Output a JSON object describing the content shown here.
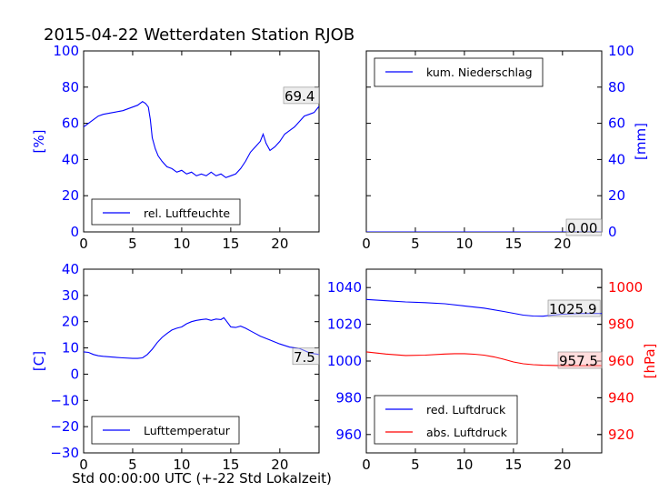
{
  "figure": {
    "title": "2015-04-22 Wetterdaten Station RJOB",
    "xlabel": "Std 00:00:00 UTC (+-22 Std Lokalzeit)"
  },
  "colors": {
    "blue": "#0000ff",
    "red": "#ff0000",
    "annotation_box": "#d9d9d9",
    "annotation_box_red": "#ffb3b3"
  },
  "chart_data": [
    {
      "id": "humidity",
      "type": "line",
      "xlim": [
        0,
        24
      ],
      "ylim": [
        0,
        100
      ],
      "x_ticks": [
        "0",
        "5",
        "10",
        "15",
        "20"
      ],
      "y_ticks": [
        "0",
        "20",
        "40",
        "60",
        "80",
        "100"
      ],
      "ylabel": "[%]",
      "ylabel_color": "#0000ff",
      "legend": "lower left",
      "annotation": "69.4",
      "series": [
        {
          "name": "rel. Luftfeuchte",
          "color": "#0000ff",
          "x": [
            0,
            0.5,
            1,
            1.5,
            2,
            3,
            4,
            5,
            5.5,
            6,
            6.3,
            6.6,
            6.8,
            7,
            7.3,
            7.6,
            8,
            8.5,
            9,
            9.5,
            10,
            10.5,
            11,
            11.5,
            12,
            12.5,
            13,
            13.5,
            14,
            14.5,
            15,
            15.5,
            16,
            16.5,
            17,
            17.5,
            18,
            18.3,
            18.6,
            19,
            19.5,
            20,
            20.5,
            21,
            21.5,
            22,
            22.5,
            23,
            23.5,
            24
          ],
          "y": [
            58,
            60,
            62,
            64,
            65,
            66,
            67,
            69,
            70,
            72,
            71,
            69,
            62,
            52,
            46,
            42,
            39,
            36,
            35,
            33,
            34,
            32,
            33,
            31,
            32,
            31,
            33,
            31,
            32,
            30,
            31,
            32,
            35,
            39,
            44,
            47,
            50,
            54,
            49,
            45,
            47,
            50,
            54,
            56,
            58,
            61,
            64,
            65,
            66,
            69.4
          ]
        }
      ]
    },
    {
      "id": "precipitation",
      "type": "line",
      "xlim": [
        0,
        24
      ],
      "ylim": [
        0,
        100
      ],
      "x_ticks": [
        "0",
        "5",
        "10",
        "15",
        "20"
      ],
      "y_ticks": [
        "0",
        "20",
        "40",
        "60",
        "80",
        "100"
      ],
      "ylabel": "[mm]",
      "ylabel_color": "#0000ff",
      "y_axis_side": "right",
      "legend": "upper left",
      "annotation": "0.00",
      "series": [
        {
          "name": "kum. Niederschlag",
          "color": "#0000ff",
          "x": [
            0,
            24
          ],
          "y": [
            0,
            0
          ]
        }
      ]
    },
    {
      "id": "temperature",
      "type": "line",
      "xlim": [
        0,
        24
      ],
      "ylim": [
        -30,
        40
      ],
      "x_ticks": [
        "0",
        "5",
        "10",
        "15",
        "20"
      ],
      "y_ticks": [
        "−30",
        "−20",
        "−10",
        "0",
        "10",
        "20",
        "30",
        "40"
      ],
      "ylabel": "[C]",
      "ylabel_color": "#0000ff",
      "legend": "lower left",
      "annotation": "7.5",
      "series": [
        {
          "name": "Lufttemperatur",
          "color": "#0000ff",
          "x": [
            0,
            0.5,
            1,
            1.5,
            2,
            3,
            4,
            5,
            5.5,
            6,
            6.5,
            7,
            7.5,
            8,
            8.5,
            9,
            9.5,
            10,
            10.5,
            11,
            11.5,
            12,
            12.5,
            13,
            13.5,
            14,
            14.3,
            14.6,
            15,
            15.5,
            16,
            16.5,
            17,
            17.5,
            18,
            19,
            20,
            21,
            22,
            23,
            23.5,
            24
          ],
          "y": [
            8.5,
            8.3,
            7.5,
            7,
            6.8,
            6.5,
            6.2,
            6,
            6,
            6.2,
            7.5,
            9.5,
            12,
            14,
            15.5,
            16.8,
            17.5,
            18,
            19.2,
            20,
            20.5,
            20.8,
            21,
            20.5,
            21,
            20.8,
            21.5,
            20,
            18,
            17.8,
            18.3,
            17.5,
            16.5,
            15.5,
            14.5,
            13,
            11.5,
            10.3,
            9.8,
            8.2,
            7.8,
            7.5
          ]
        }
      ]
    },
    {
      "id": "pressure",
      "type": "line",
      "xlim": [
        0,
        24
      ],
      "ylim": [
        950,
        1050
      ],
      "x_ticks": [
        "0",
        "5",
        "10",
        "15",
        "20"
      ],
      "y_ticks": [
        "960",
        "980",
        "1000",
        "1020",
        "1040"
      ],
      "ylim_right": [
        910,
        1010
      ],
      "y_ticks_right": [
        "920",
        "940",
        "960",
        "980",
        "1000"
      ],
      "ylabel_right": "[hPa]",
      "ylabel_right_color": "#ff0000",
      "legend": "lower left",
      "annotations": [
        "1025.9",
        "957.5"
      ],
      "series": [
        {
          "name": "red. Luftdruck",
          "color": "#0000ff",
          "axis": "left",
          "x": [
            0,
            2,
            4,
            6,
            8,
            10,
            12,
            14,
            16,
            17,
            18,
            19,
            20,
            22,
            24
          ],
          "y": [
            1033.5,
            1032.8,
            1032.2,
            1031.8,
            1031.2,
            1030,
            1028.8,
            1027,
            1025,
            1024.5,
            1024.4,
            1025,
            1025.5,
            1025.9,
            1025.9
          ]
        },
        {
          "name": "abs. Luftdruck",
          "color": "#ff0000",
          "axis": "right",
          "x": [
            0,
            2,
            4,
            6,
            8,
            9,
            10,
            11,
            12,
            13,
            14,
            15,
            16,
            17,
            18,
            19,
            20,
            22,
            24
          ],
          "y": [
            965,
            963.8,
            963,
            963.2,
            963.8,
            964,
            964,
            963.7,
            963.2,
            962.3,
            961,
            959.5,
            958.5,
            958,
            957.7,
            957.6,
            957.5,
            957.5,
            957.5
          ]
        }
      ]
    }
  ]
}
